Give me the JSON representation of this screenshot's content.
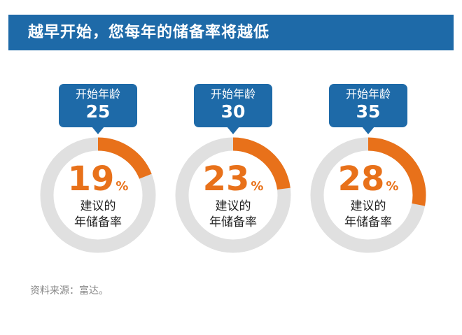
{
  "header": {
    "title": "越早开始，您每年的储备率将越低"
  },
  "colors": {
    "accent": "#e8711a",
    "track": "#e0e0e0",
    "header": "#1e6aa8"
  },
  "chart_data": {
    "type": "pie",
    "title": "越早开始，您每年的储备率将越低",
    "panels": [
      {
        "start_label": "开始年龄",
        "start_age": "25",
        "value": 19,
        "value_label": "19",
        "unit": "%",
        "caption_line1": "建议的",
        "caption_line2": "年储备率"
      },
      {
        "start_label": "开始年龄",
        "start_age": "30",
        "value": 23,
        "value_label": "23",
        "unit": "%",
        "caption_line1": "建议的",
        "caption_line2": "年储备率"
      },
      {
        "start_label": "开始年龄",
        "start_age": "35",
        "value": 28,
        "value_label": "28",
        "unit": "%",
        "caption_line1": "建议的",
        "caption_line2": "年储备率"
      }
    ]
  },
  "footer": {
    "source": "资料来源：富达。"
  }
}
